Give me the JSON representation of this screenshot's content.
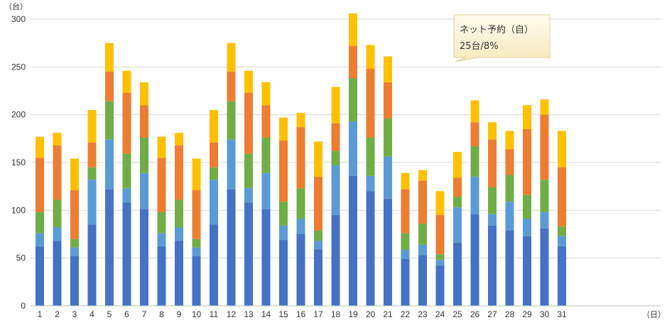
{
  "chart_data": {
    "type": "bar",
    "stacked": true,
    "y_unit_label": "（台）",
    "x_unit_label": "（日）",
    "ylim": [
      0,
      300
    ],
    "yticks": [
      0,
      50,
      100,
      150,
      200,
      250,
      300
    ],
    "grid": true,
    "legend": "none",
    "categories": [
      "1",
      "2",
      "3",
      "4",
      "5",
      "6",
      "7",
      "8",
      "9",
      "10",
      "11",
      "12",
      "13",
      "14",
      "15",
      "16",
      "17",
      "18",
      "19",
      "20",
      "21",
      "22",
      "23",
      "24",
      "25",
      "26",
      "27",
      "28",
      "29",
      "30",
      "31"
    ],
    "series": [
      {
        "color": "#4472c4",
        "values": [
          62,
          68,
          52,
          85,
          122,
          108,
          101,
          62,
          68,
          52,
          85,
          122,
          108,
          101,
          69,
          75,
          59,
          95,
          136,
          120,
          112,
          49,
          53,
          42,
          66,
          96,
          84,
          79,
          73,
          81,
          62
        ]
      },
      {
        "color": "#5b9bd5",
        "values": [
          14,
          14,
          9,
          47,
          52,
          15,
          38,
          14,
          14,
          9,
          47,
          52,
          15,
          38,
          15,
          16,
          9,
          52,
          57,
          16,
          44,
          10,
          11,
          6,
          37,
          39,
          12,
          30,
          18,
          17,
          11
        ]
      },
      {
        "color": "#70ad47",
        "values": [
          22,
          29,
          9,
          13,
          40,
          36,
          37,
          22,
          29,
          9,
          13,
          40,
          36,
          37,
          25,
          32,
          11,
          15,
          45,
          40,
          40,
          17,
          22,
          6,
          11,
          32,
          28,
          28,
          25,
          34,
          10
        ]
      },
      {
        "color": "#ed7d31",
        "values": [
          57,
          57,
          51,
          26,
          31,
          64,
          34,
          57,
          57,
          51,
          26,
          31,
          64,
          34,
          64,
          64,
          56,
          29,
          34,
          72,
          38,
          46,
          45,
          41,
          20,
          25,
          50,
          27,
          69,
          68,
          62
        ]
      },
      {
        "color": "#ffc000",
        "values": [
          22,
          13,
          33,
          34,
          30,
          23,
          24,
          22,
          13,
          33,
          34,
          30,
          23,
          24,
          24,
          15,
          37,
          38,
          34,
          25,
          27,
          17,
          11,
          25,
          27,
          23,
          18,
          19,
          25,
          16,
          38
        ]
      }
    ]
  },
  "callout": {
    "line1": "ネット予約（自）",
    "line2": "25台/8%"
  }
}
